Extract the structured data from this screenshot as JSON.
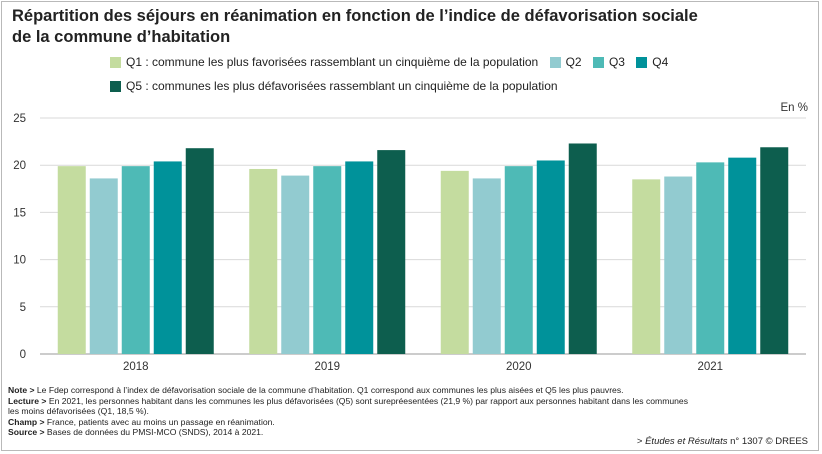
{
  "title_line1": "Répartition des séjours en réanimation en fonction de l’indice de défavorisation sociale",
  "title_line2": "de la commune d’habitation",
  "unit_label": "En %",
  "legend": [
    {
      "label": "Q1 : commune les plus favorisées rassemblant un cinquième de la population",
      "color": "#c4dc9f"
    },
    {
      "label": "Q2",
      "color": "#92cbd0"
    },
    {
      "label": "Q3",
      "color": "#4ebab6"
    },
    {
      "label": "Q4",
      "color": "#00929a"
    },
    {
      "label": "Q5 : communes les plus défavorisées rassemblant un cinquième de la population",
      "color": "#0d5e4e"
    }
  ],
  "chart_data": {
    "type": "bar",
    "categories": [
      "2018",
      "2019",
      "2020",
      "2021"
    ],
    "series": [
      {
        "name": "Q1 : commune les plus favorisées rassemblant un cinquième de la population",
        "values": [
          19.9,
          19.6,
          19.4,
          18.5
        ],
        "color": "#c4dc9f"
      },
      {
        "name": "Q2",
        "values": [
          18.6,
          18.9,
          18.6,
          18.8
        ],
        "color": "#92cbd0"
      },
      {
        "name": "Q3",
        "values": [
          19.9,
          19.9,
          19.9,
          20.3
        ],
        "color": "#4ebab6"
      },
      {
        "name": "Q4",
        "values": [
          20.4,
          20.4,
          20.5,
          20.8
        ],
        "color": "#00929a"
      },
      {
        "name": "Q5 : communes les plus défavorisées rassemblant un cinquième de la population",
        "values": [
          21.8,
          21.6,
          22.3,
          21.9
        ],
        "color": "#0d5e4e"
      }
    ],
    "ylim": [
      0,
      25
    ],
    "yticks": [
      "0",
      "5",
      "10",
      "15",
      "20",
      "25"
    ],
    "grid": true,
    "legend_position": "top"
  },
  "notes": {
    "note_label": "Note >",
    "note_text": " Le Fdep correspond à l’index de défavorisation sociale de la commune d’habitation. Q1 correspond aux communes les plus aisées et Q5 les plus pauvres.",
    "lecture_label": "Lecture >",
    "lecture_text1": " En 2021, les personnes habitant dans les communes les plus défavorisées (Q5) sont surepréesentées (21,9 %) par rapport aux personnes habitant dans les communes",
    "lecture_text2": "les moins défavorisées (Q1, 18,5 %).",
    "champ_label": "Champ >",
    "champ_text": " France, patients avec au moins un passage en réanimation.",
    "source_label": "Source >",
    "source_text": " Bases de données du PMSI-MCO (SNDS), 2014 à 2021."
  },
  "credit": {
    "prefix": "> ",
    "italic": "Études et Résultats",
    "suffix": " n° 1307 © DREES"
  }
}
